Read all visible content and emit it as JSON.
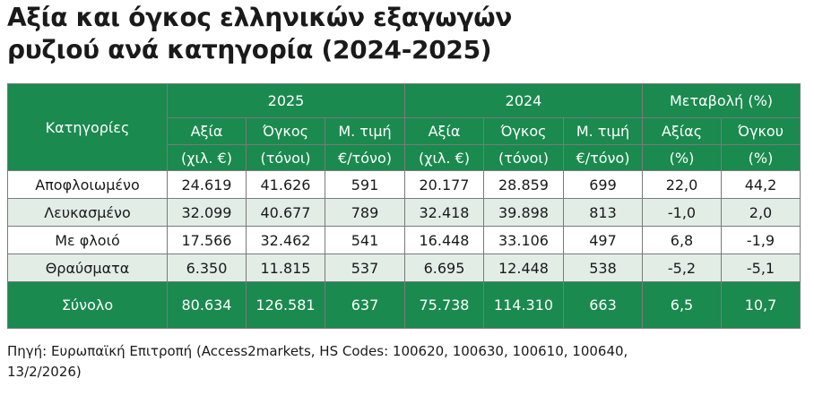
{
  "title_line1": "Αξία και όγκος ελληνικών εξαγωγών",
  "title_line2": "ρυζιού ανά κατηγορία (2024-2025)",
  "table": {
    "header": {
      "category": "Κατηγορίες",
      "group_2025": "2025",
      "group_2024": "2024",
      "group_change": "Μεταβολή (%)",
      "sub_value": "Αξία",
      "sub_volume": "Όγκος",
      "sub_avg_price": "Μ. τιμή",
      "sub_change_value": "Αξίας",
      "sub_change_volume": "Όγκου",
      "unit_value": "(χιλ. €)",
      "unit_volume": "(τόνοι)",
      "unit_price": "€/τόνο)",
      "unit_pct": "(%)"
    },
    "rows": [
      {
        "category": "Αποφλοιωμένο",
        "v2025_value": "24.619",
        "v2025_volume": "41.626",
        "v2025_price": "591",
        "v2024_value": "20.177",
        "v2024_volume": "28.859",
        "v2024_price": "699",
        "chg_value": "22,0",
        "chg_volume": "44,2"
      },
      {
        "category": "Λευκασμένο",
        "v2025_value": "32.099",
        "v2025_volume": "40.677",
        "v2025_price": "789",
        "v2024_value": "32.418",
        "v2024_volume": "39.898",
        "v2024_price": "813",
        "chg_value": "-1,0",
        "chg_volume": "2,0"
      },
      {
        "category": "Με φλοιό",
        "v2025_value": "17.566",
        "v2025_volume": "32.462",
        "v2025_price": "541",
        "v2024_value": "16.448",
        "v2024_volume": "33.106",
        "v2024_price": "497",
        "chg_value": "6,8",
        "chg_volume": "-1,9"
      },
      {
        "category": "Θραύσματα",
        "v2025_value": "6.350",
        "v2025_volume": "11.815",
        "v2025_price": "537",
        "v2024_value": "6.695",
        "v2024_volume": "12.448",
        "v2024_price": "538",
        "chg_value": "-5,2",
        "chg_volume": "-5,1"
      }
    ],
    "total": {
      "category": "Σύνολο",
      "v2025_value": "80.634",
      "v2025_volume": "126.581",
      "v2025_price": "637",
      "v2024_value": "75.738",
      "v2024_volume": "114.310",
      "v2024_price": "663",
      "chg_value": "6,5",
      "chg_volume": "10,7"
    }
  },
  "source_line1": "Πηγή: Ευρωπαϊκή Επιτροπή (Access2markets, HS Codes: 100620, 100630, 100610, 100640,",
  "source_line2": "13/2/2026)",
  "colors": {
    "header_green": "#1a8a4f",
    "alt_row": "#e2ede6",
    "text": "#1a1a1a"
  }
}
